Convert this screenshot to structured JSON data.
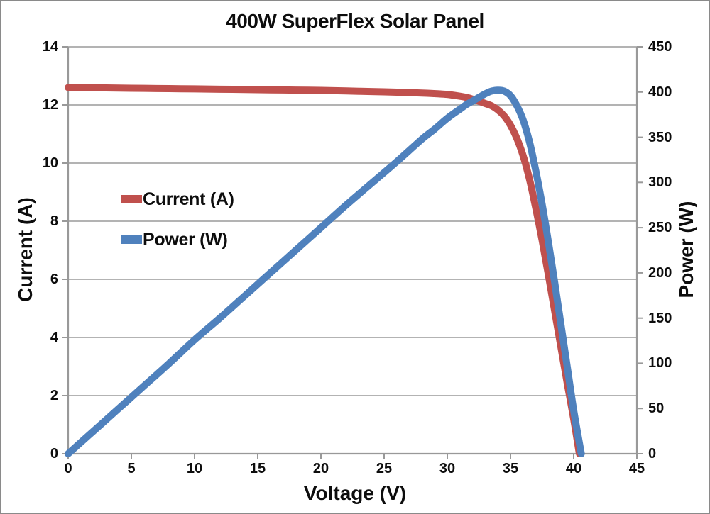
{
  "frame": {
    "border_color": "#8a8a8a",
    "background": "#ffffff"
  },
  "chart_data": {
    "type": "line",
    "title": "400W SuperFlex Solar Panel",
    "x_axis": {
      "label": "Voltage (V)",
      "min": 0,
      "max": 45,
      "ticks": [
        0,
        5,
        10,
        15,
        20,
        25,
        30,
        35,
        40,
        45
      ]
    },
    "y_axis_left": {
      "label": "Current (A)",
      "min": 0,
      "max": 14,
      "ticks": [
        0,
        2,
        4,
        6,
        8,
        10,
        12,
        14
      ]
    },
    "y_axis_right": {
      "label": "Power (W)",
      "min": 0,
      "max": 450,
      "ticks": [
        0,
        50,
        100,
        150,
        200,
        250,
        300,
        350,
        400,
        450
      ]
    },
    "grid": {
      "horizontal": true,
      "vertical": false,
      "color": "#9a9a9a"
    },
    "axis_color": "#999999",
    "legend": {
      "position": "inside-upper-left",
      "entries": [
        {
          "label": "Current (A)",
          "color": "#C0504D"
        },
        {
          "label": "Power (W)",
          "color": "#4F81BD"
        }
      ]
    },
    "series": [
      {
        "name": "Current (A)",
        "color": "#C0504D",
        "axis": "left",
        "x": [
          0,
          2,
          4,
          6,
          8,
          10,
          12,
          14,
          16,
          18,
          20,
          22,
          24,
          26,
          28,
          29,
          30,
          31,
          31.5,
          32,
          32.5,
          33,
          33.5,
          34,
          34.5,
          35,
          35.5,
          36,
          36.5,
          37,
          37.5,
          38,
          38.5,
          39,
          39.5,
          40,
          40.45
        ],
        "y": [
          12.6,
          12.59,
          12.58,
          12.57,
          12.56,
          12.55,
          12.54,
          12.53,
          12.52,
          12.51,
          12.5,
          12.48,
          12.46,
          12.44,
          12.41,
          12.39,
          12.36,
          12.3,
          12.26,
          12.2,
          12.13,
          12.05,
          11.97,
          11.83,
          11.62,
          11.3,
          10.85,
          10.25,
          9.45,
          8.45,
          7.35,
          6.15,
          4.9,
          3.65,
          2.4,
          1.2,
          0
        ]
      },
      {
        "name": "Power (W)",
        "color": "#4F81BD",
        "axis": "right",
        "x": [
          0,
          2,
          4,
          6,
          8,
          10,
          12,
          14,
          16,
          18,
          20,
          22,
          24,
          26,
          28,
          29,
          30,
          31,
          31.5,
          32,
          32.5,
          33,
          33.5,
          34,
          34.5,
          35,
          35.5,
          36,
          36.5,
          37,
          37.5,
          38,
          38.5,
          39,
          39.5,
          40,
          40.6
        ],
        "y": [
          0,
          25,
          50,
          75,
          100,
          126,
          150,
          175,
          200,
          225,
          250,
          275,
          299,
          323,
          348,
          359,
          371,
          381,
          386,
          390,
          394,
          398,
          401,
          402,
          401,
          396,
          385,
          369,
          345,
          313,
          276,
          234,
          189,
          142,
          95,
          48,
          0
        ]
      }
    ],
    "key_points": {
      "short_circuit_current_A": 12.6,
      "open_circuit_voltage_V": 40.5,
      "max_power_W": 402,
      "voltage_at_max_power_V": 34
    }
  }
}
